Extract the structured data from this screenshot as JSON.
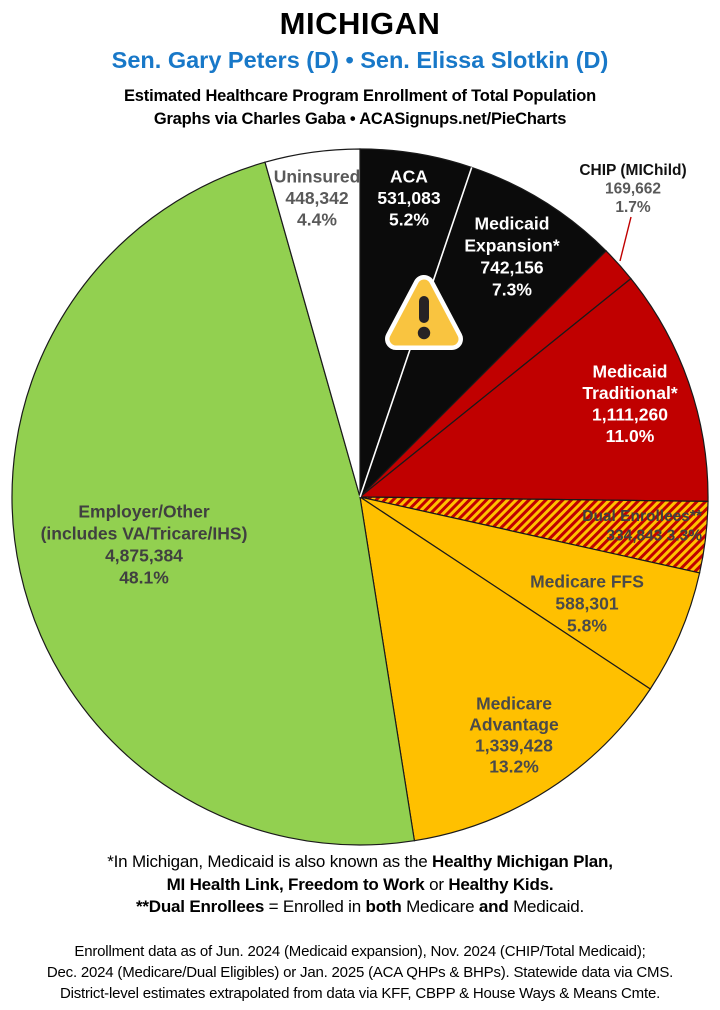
{
  "header": {
    "state": "MICHIGAN",
    "senators": "Sen. Gary Peters (D) • Sen. Elissa Slotkin (D)",
    "subtitle_line1": "Estimated Healthcare Program Enrollment of Total Population",
    "subtitle_line2": "Graphs via Charles Gaba   •   ACASignups.net/PieCharts"
  },
  "colors": {
    "senator_blue": "#1878c8",
    "slice_outline": "#1a1a1a",
    "divider_white": "#ffffff",
    "leader_line_red": "#c00000",
    "hatch_base_gold": "#ffc000",
    "hatch_stripe_red": "#c00000",
    "warning_triangle_fill": "#f9c440",
    "warning_glyph": "#262224"
  },
  "chart_data": {
    "type": "pie",
    "title": "Estimated Healthcare Program Enrollment of Total Population",
    "units": "people",
    "start_angle_deg": 0,
    "direction": "clockwise",
    "legend_position": "labels-on-slices",
    "annotations": [
      {
        "type": "warning-icon",
        "note": "warning triangle overlaid on ACA / Medicaid Expansion slices"
      },
      {
        "type": "leader-line",
        "from_label": "CHIP (MIChild)",
        "color": "#c00000"
      }
    ],
    "slices": [
      {
        "id": "aca",
        "label": "ACA",
        "value": 531083,
        "value_text": "531,083",
        "pct": 5.2,
        "pct_text": "5.2%",
        "color": "#0b0b0b",
        "text_color": "#ffffff",
        "label_lines": [
          "ACA",
          "531,083",
          "5.2%"
        ]
      },
      {
        "id": "medicaid_expansion",
        "label": "Medicaid Expansion*",
        "value": 742156,
        "value_text": "742,156",
        "pct": 7.3,
        "pct_text": "7.3%",
        "color": "#0b0b0b",
        "text_color": "#ffffff",
        "label_lines": [
          "Medicaid",
          "Expansion*",
          "742,156",
          "7.3%"
        ]
      },
      {
        "id": "chip",
        "label": "CHIP (MIChild)",
        "value": 169662,
        "value_text": "169,662",
        "pct": 1.7,
        "pct_text": "1.7%",
        "color": "#c00000",
        "text_color": "#595959",
        "title_color": "#111111",
        "label_outside": true,
        "label_lines": [
          "CHIP (MIChild)",
          "169,662",
          "1.7%"
        ]
      },
      {
        "id": "medicaid_traditional",
        "label": "Medicaid Traditional*",
        "value": 1111260,
        "value_text": "1,111,260",
        "pct": 11.0,
        "pct_text": "11.0%",
        "color": "#c00000",
        "text_color": "#ffffff",
        "label_lines": [
          "Medicaid",
          "Traditional*",
          "1,111,260",
          "11.0%"
        ]
      },
      {
        "id": "dual",
        "label": "Dual Enrollees**",
        "value": 334843,
        "value_text": "334,843",
        "pct": 3.3,
        "pct_text": "3.3%",
        "color": "hatch",
        "text_color": "#404040",
        "label_lines": [
          "Dual Enrollees**",
          "334,843 3.3%"
        ]
      },
      {
        "id": "medicare_ffs",
        "label": "Medicare FFS",
        "value": 588301,
        "value_text": "588,301",
        "pct": 5.8,
        "pct_text": "5.8%",
        "color": "#ffc000",
        "text_color": "#4a4a4a",
        "label_lines": [
          "Medicare FFS",
          "588,301",
          "5.8%"
        ]
      },
      {
        "id": "medicare_advantage",
        "label": "Medicare Advantage",
        "value": 1339428,
        "value_text": "1,339,428",
        "pct": 13.2,
        "pct_text": "13.2%",
        "color": "#ffc000",
        "text_color": "#4a4a4a",
        "label_lines": [
          "Medicare",
          "Advantage",
          "1,339,428",
          "13.2%"
        ]
      },
      {
        "id": "employer",
        "label": "Employer/Other (includes VA/Tricare/IHS)",
        "value": 4875384,
        "value_text": "4,875,384",
        "pct": 48.1,
        "pct_text": "48.1%",
        "color": "#92d050",
        "text_color": "#404040",
        "label_lines": [
          "Employer/Other",
          "(includes VA/Tricare/IHS)",
          "4,875,384",
          "48.1%"
        ]
      },
      {
        "id": "uninsured",
        "label": "Uninsured",
        "value": 448342,
        "value_text": "448,342",
        "pct": 4.4,
        "pct_text": "4.4%",
        "color": "#ffffff",
        "text_color": "#595959",
        "label_lines": [
          "Uninsured",
          "448,342",
          "4.4%"
        ]
      }
    ]
  },
  "footnotes": {
    "line1_segments": [
      {
        "t": "*In Michigan, Medicaid is also known as the ",
        "b": false
      },
      {
        "t": "Healthy Michigan Plan,",
        "b": true
      }
    ],
    "line2_segments": [
      {
        "t": "MI Health Link, Freedom to Work",
        "b": true
      },
      {
        "t": " or ",
        "b": false
      },
      {
        "t": "Healthy Kids.",
        "b": true
      }
    ],
    "line3_segments": [
      {
        "t": "**Dual Enrollees",
        "b": true
      },
      {
        "t": " = Enrolled in ",
        "b": false
      },
      {
        "t": "both",
        "b": true
      },
      {
        "t": " Medicare ",
        "b": false
      },
      {
        "t": "and",
        "b": true
      },
      {
        "t": " Medicaid.",
        "b": false
      }
    ]
  },
  "source": {
    "line1": "Enrollment data as of Jun. 2024 (Medicaid expansion), Nov. 2024 (CHIP/Total Medicaid);",
    "line2": "Dec. 2024 (Medicare/Dual Eligibles) or Jan. 2025 (ACA QHPs & BHPs). Statewide data via CMS.",
    "line3": "District-level estimates extrapolated from data via KFF, CBPP & House Ways & Means Cmte."
  }
}
